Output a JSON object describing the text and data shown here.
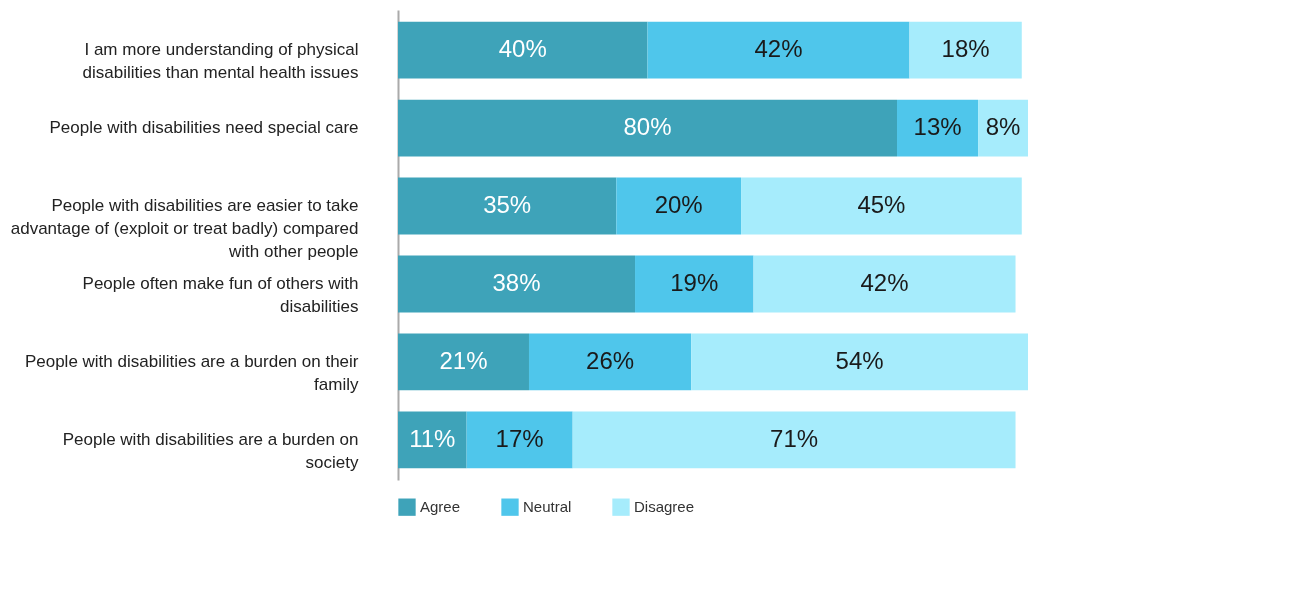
{
  "chart_data": {
    "type": "bar",
    "orientation": "horizontal",
    "stacked": true,
    "legend": "bottom",
    "tick_labels": "y",
    "xlim": [
      0,
      101
    ],
    "categories": [
      "I am more understanding of physical disabilities than mental health issues",
      "People with disabilities need special care",
      "People with disabilities are easier to take advantage of (exploit or treat badly) compared with other people",
      "People often make fun of others with disabilities",
      "People with disabilities are a burden on their family",
      "People with disabilities are a burden on society"
    ],
    "series": [
      {
        "name": "Agree",
        "color": "#3ea3b9",
        "values": [
          40,
          80,
          35,
          38,
          21,
          11
        ],
        "value_labels": [
          "40%",
          "80%",
          "35%",
          "38%",
          "21%",
          "11%"
        ]
      },
      {
        "name": "Neutral",
        "color": "#4fc6eb",
        "values": [
          42,
          13,
          20,
          19,
          26,
          17
        ],
        "value_labels": [
          "42%",
          "13%",
          "20%",
          "19%",
          "26%",
          "17%"
        ]
      },
      {
        "name": "Disagree",
        "color": "#a6ecfc",
        "values": [
          18,
          8,
          45,
          42,
          54,
          71
        ],
        "value_labels": [
          "18%",
          "8%",
          "45%",
          "42%",
          "54%",
          "71%"
        ]
      }
    ]
  }
}
